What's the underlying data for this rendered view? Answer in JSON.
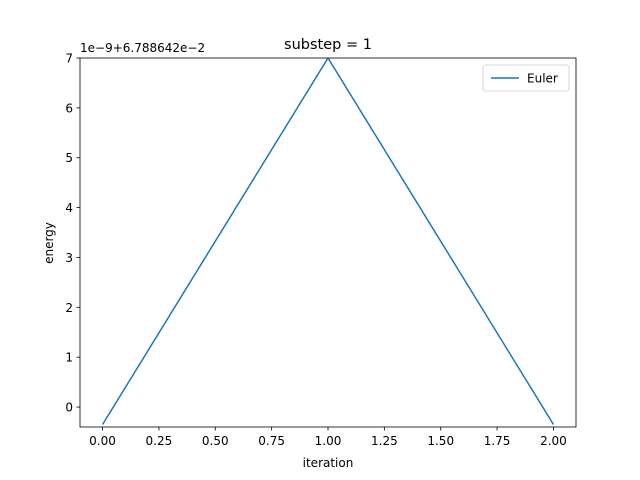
{
  "chart_data": {
    "type": "line",
    "title": "substep = 1",
    "xlabel": "iteration",
    "ylabel": "energy",
    "y_offset_text": "1e−9+6.788642e−2",
    "xlim": [
      -0.1,
      2.1
    ],
    "ylim": [
      -0.4,
      7.0
    ],
    "x_ticks": [
      0.0,
      0.25,
      0.5,
      0.75,
      1.0,
      1.25,
      1.5,
      1.75,
      2.0
    ],
    "x_tick_labels": [
      "0.00",
      "0.25",
      "0.50",
      "0.75",
      "1.00",
      "1.25",
      "1.50",
      "1.75",
      "2.00"
    ],
    "y_ticks": [
      0,
      1,
      2,
      3,
      4,
      5,
      6,
      7
    ],
    "y_tick_labels": [
      "0",
      "1",
      "2",
      "3",
      "4",
      "5",
      "6",
      "7"
    ],
    "grid": false,
    "legend_position": "top-right",
    "series": [
      {
        "name": "Euler",
        "color": "#1f77b4",
        "x": [
          0,
          1,
          2
        ],
        "y": [
          -0.35,
          7.0,
          -0.35
        ]
      }
    ]
  }
}
